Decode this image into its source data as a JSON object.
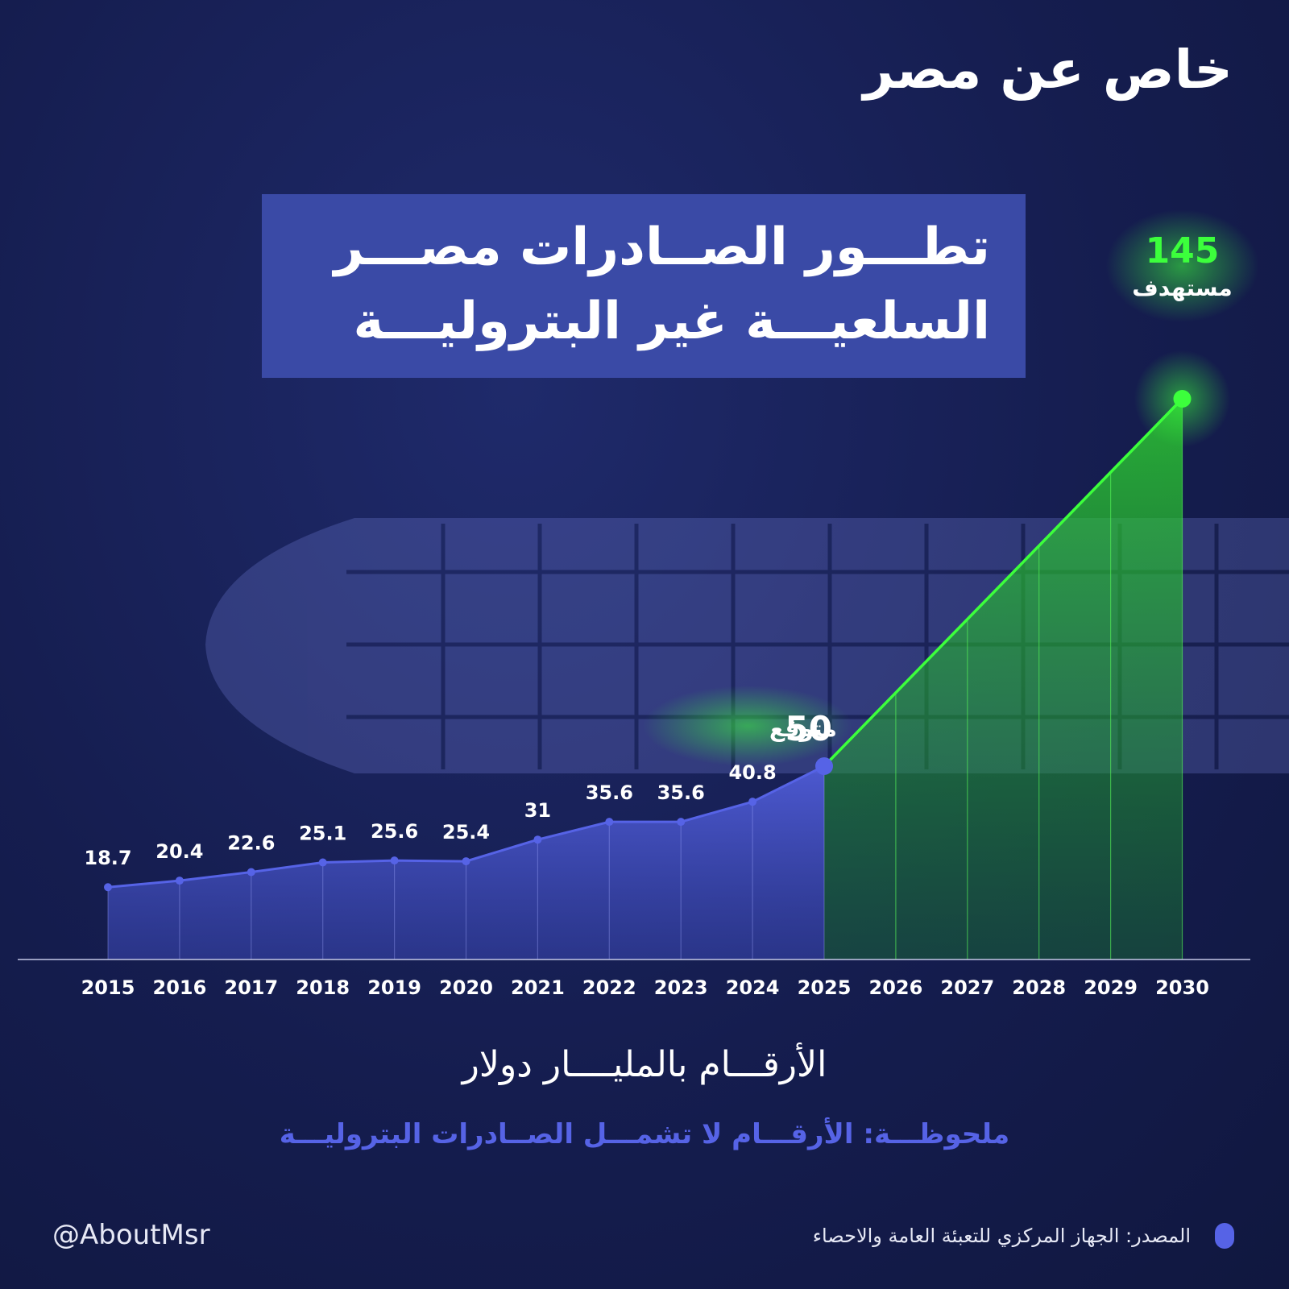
{
  "brand": {
    "logo_text": "خاص عن مصر"
  },
  "title": {
    "line1": "تطـــور الصــادرات مصـــر",
    "line2": "السلعيـــة غير البتروليـــة"
  },
  "unit_label": "الأرقـــام بالمليــــار دولار",
  "note": "ملحوظـــة: الأرقـــام لا تشمـــل الصــادرات البتروليـــة",
  "handle": "@AboutMsr",
  "source": "المصدر: الجهاز المركزي للتعبئة العامة والاحصاء",
  "colors": {
    "actual": "#5663e6",
    "target": "#3cff3c",
    "title_box": "#3a4aa6",
    "background": "#151d4f"
  },
  "chart_data": {
    "type": "line",
    "x": [
      2015,
      2016,
      2017,
      2018,
      2019,
      2020,
      2021,
      2022,
      2023,
      2024,
      2025,
      2026,
      2027,
      2028,
      2029,
      2030
    ],
    "series": [
      {
        "values": [
          18.7,
          20.4,
          22.6,
          25.1,
          25.6,
          25.4,
          31,
          35.6,
          35.6,
          40.8,
          50,
          null,
          null,
          null,
          null,
          null
        ],
        "labels": [
          "18.7",
          "20.4",
          "22.6",
          "25.1",
          "25.6",
          "25.4",
          "31",
          "35.6",
          "35.6",
          "40.8",
          "",
          "",
          "",
          "",
          "",
          ""
        ]
      },
      {
        "values": [
          null,
          null,
          null,
          null,
          null,
          null,
          null,
          null,
          null,
          null,
          50,
          null,
          null,
          null,
          null,
          145
        ]
      }
    ],
    "annotations": [
      {
        "x": 2025,
        "value": "50",
        "text": "متوقع"
      },
      {
        "x": 2030,
        "value": "145",
        "text": "مستهدف"
      }
    ],
    "ylim": [
      0,
      155
    ],
    "grid": "vertical-lines",
    "legend": "none"
  }
}
